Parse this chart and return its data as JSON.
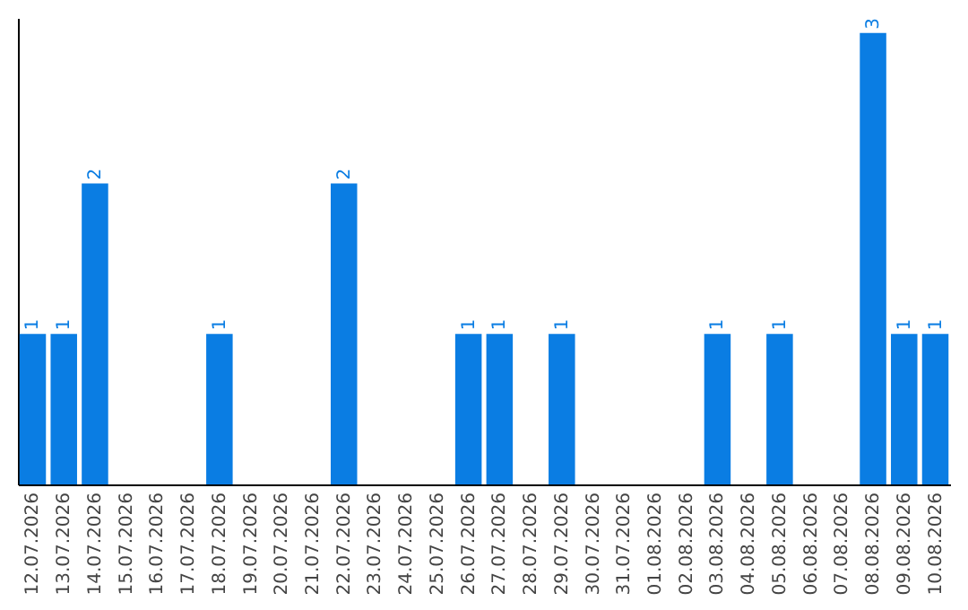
{
  "chart_data": {
    "type": "bar",
    "categories": [
      "12.07.2026",
      "13.07.2026",
      "14.07.2026",
      "15.07.2026",
      "16.07.2026",
      "17.07.2026",
      "18.07.2026",
      "19.07.2026",
      "20.07.2026",
      "21.07.2026",
      "22.07.2026",
      "23.07.2026",
      "24.07.2026",
      "25.07.2026",
      "26.07.2026",
      "27.07.2026",
      "28.07.2026",
      "29.07.2026",
      "30.07.2026",
      "31.07.2026",
      "01.08.2026",
      "02.08.2026",
      "03.08.2026",
      "04.08.2026",
      "05.08.2026",
      "06.08.2026",
      "07.08.2026",
      "08.08.2026",
      "09.08.2026",
      "10.08.2026"
    ],
    "values": [
      1,
      1,
      2,
      0,
      0,
      0,
      1,
      0,
      0,
      0,
      2,
      0,
      0,
      0,
      1,
      1,
      0,
      1,
      0,
      0,
      0,
      0,
      1,
      0,
      1,
      0,
      0,
      3,
      1,
      1
    ],
    "value_labels": [
      "1",
      "1",
      "2",
      null,
      null,
      null,
      "1",
      null,
      null,
      null,
      "2",
      null,
      null,
      null,
      "1",
      "1",
      null,
      "1",
      null,
      null,
      null,
      null,
      "1",
      null,
      "1",
      null,
      null,
      "3",
      "1",
      "1"
    ],
    "color": "#0a7de3",
    "relative": false,
    "ylim": [
      0,
      3.1
    ],
    "grid": false
  }
}
